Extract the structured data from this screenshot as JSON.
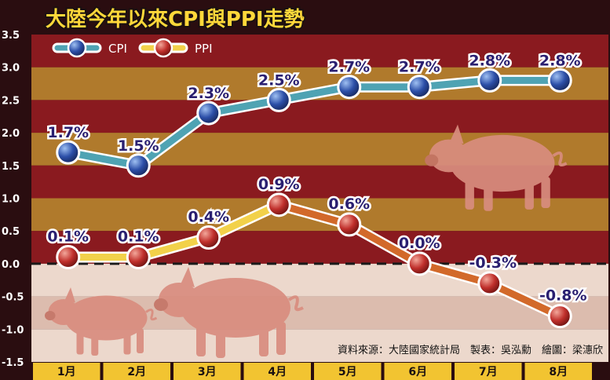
{
  "colors": {
    "band_dark": "#8a1a1f",
    "band_light": "#b07a2c",
    "negative_dark": "#dcbcae",
    "negative_light": "#ecd8cc",
    "axis_bg": "#2a0d10",
    "month_bar": "#f2c431",
    "cpi_line": "#4fa3b3",
    "ppi_pos_line": "#f2d14a",
    "ppi_neg_line": "#d2692a",
    "cpi_marker": "#2c4fa8",
    "ppi_marker": "#c0302c",
    "title_fill": "#ffd83a",
    "label_text": "#2a1f70",
    "pig": "#d98d7f"
  },
  "title": "大陸今年以來CPI與PPI走勢",
  "source": "資料來源：大陸國家統計局　製表：吳泓勳　繪圖：梁潓欣",
  "chart_data": {
    "type": "line",
    "categories": [
      "1月",
      "2月",
      "3月",
      "4月",
      "5月",
      "6月",
      "7月",
      "8月"
    ],
    "ylim": [
      -1.5,
      3.5
    ],
    "yticks": [
      "-1.5",
      "-1.0",
      "-0.5",
      "0.0",
      "0.5",
      "1.0",
      "1.5",
      "2.0",
      "2.5",
      "3.0",
      "3.5"
    ],
    "legend_placement": "top-left",
    "series": [
      {
        "name": "CPI",
        "values": [
          1.7,
          1.5,
          2.3,
          2.5,
          2.7,
          2.7,
          2.8,
          2.8
        ],
        "labels": [
          "1.7%",
          "1.5%",
          "2.3%",
          "2.5%",
          "2.7%",
          "2.7%",
          "2.8%",
          "2.8%"
        ]
      },
      {
        "name": "PPI",
        "values": [
          0.1,
          0.1,
          0.4,
          0.9,
          0.6,
          0.0,
          -0.3,
          -0.8
        ],
        "labels": [
          "0.1%",
          "0.1%",
          "0.4%",
          "0.9%",
          "0.6%",
          "0.0%",
          "-0.3%",
          "-0.8%"
        ]
      }
    ]
  }
}
